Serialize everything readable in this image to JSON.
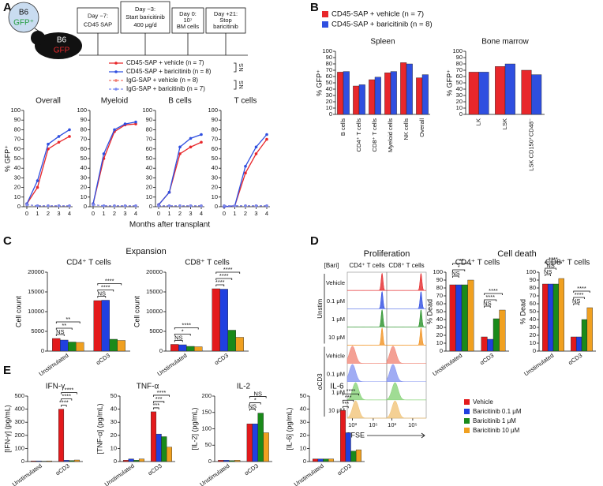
{
  "panel_labels": [
    "A",
    "B",
    "C",
    "D",
    "E"
  ],
  "timeline": {
    "donor": [
      "B6",
      "GFP⁺"
    ],
    "recipient": [
      "B6",
      "GFP"
    ],
    "steps": [
      [
        "Day −7:",
        "CD45 SAP"
      ],
      [
        "Day −3:",
        "Start baricitinib",
        "400 μg/d"
      ],
      [
        "Day 0:",
        "10⁷",
        "BM cells"
      ],
      [
        "Day +21:",
        "Stop",
        "baricitinib"
      ]
    ]
  },
  "shared_xlabel": "Months after transplant",
  "section_titles": [
    "Expansion",
    "Cell death"
  ],
  "chart_data": [
    {
      "type": "line",
      "title": "Overall",
      "ylabel": "% GFP⁺",
      "x": [
        0,
        1,
        2,
        3,
        4
      ],
      "xlim": [
        0,
        4
      ],
      "xticks": [
        0,
        1,
        2,
        3,
        4
      ],
      "ylim": [
        0,
        100
      ],
      "yticks": [
        0,
        10,
        20,
        30,
        40,
        50,
        60,
        70,
        80,
        90,
        100
      ],
      "series": [
        {
          "name": "CD45-SAP + vehicle (n = 7)",
          "color": "#e8272b",
          "line_style": "solid",
          "values": [
            3,
            20,
            60,
            67,
            73
          ]
        },
        {
          "name": "CD45-SAP + baricitinib (n = 8)",
          "color": "#2f4fe0",
          "line_style": "solid",
          "values": [
            3,
            27,
            65,
            73,
            80
          ]
        },
        {
          "name": "IgG-SAP + vehicle (n = 8)",
          "color": "#f07a70",
          "line_style": "dashed",
          "values": [
            2,
            1,
            1,
            1,
            1
          ]
        },
        {
          "name": "IgG-SAP + baricitinib (n = 7)",
          "color": "#7a8af0",
          "line_style": "dashed",
          "values": [
            2,
            1,
            1,
            1,
            1
          ]
        }
      ],
      "legend_notes": [
        "NS",
        "NS"
      ]
    },
    {
      "type": "line",
      "title": "Myeloid",
      "x": [
        0,
        1,
        2,
        3,
        4
      ],
      "xlim": [
        0,
        4
      ],
      "xticks": [
        0,
        1,
        2,
        3,
        4
      ],
      "ylim": [
        0,
        100
      ],
      "yticks": [
        0,
        10,
        20,
        30,
        40,
        50,
        60,
        70,
        80,
        90,
        100
      ],
      "series": [
        {
          "color": "#e8272b",
          "line_style": "solid",
          "values": [
            3,
            50,
            78,
            85,
            86
          ]
        },
        {
          "color": "#2f4fe0",
          "line_style": "solid",
          "values": [
            3,
            55,
            80,
            86,
            88
          ]
        },
        {
          "color": "#f07a70",
          "line_style": "dashed",
          "values": [
            2,
            1,
            1,
            1,
            1
          ]
        },
        {
          "color": "#7a8af0",
          "line_style": "dashed",
          "values": [
            2,
            1,
            1,
            1,
            1
          ]
        }
      ]
    },
    {
      "type": "line",
      "title": "B cells",
      "x": [
        0,
        1,
        2,
        3,
        4
      ],
      "xlim": [
        0,
        4
      ],
      "xticks": [
        0,
        1,
        2,
        3,
        4
      ],
      "ylim": [
        0,
        100
      ],
      "yticks": [
        0,
        10,
        20,
        30,
        40,
        50,
        60,
        70,
        80,
        90,
        100
      ],
      "series": [
        {
          "color": "#e8272b",
          "line_style": "solid",
          "values": [
            2,
            15,
            55,
            62,
            67
          ]
        },
        {
          "color": "#2f4fe0",
          "line_style": "solid",
          "values": [
            2,
            15,
            62,
            71,
            75
          ]
        },
        {
          "color": "#f07a70",
          "line_style": "dashed",
          "values": [
            1,
            1,
            1,
            1,
            1
          ]
        },
        {
          "color": "#7a8af0",
          "line_style": "dashed",
          "values": [
            1,
            1,
            1,
            1,
            1
          ]
        }
      ]
    },
    {
      "type": "line",
      "title": "T cells",
      "x": [
        0,
        1,
        2,
        3,
        4
      ],
      "xlim": [
        0,
        4
      ],
      "xticks": [
        0,
        1,
        2,
        3,
        4
      ],
      "ylim": [
        0,
        100
      ],
      "yticks": [
        0,
        10,
        20,
        30,
        40,
        50,
        60,
        70,
        80,
        90,
        100
      ],
      "series": [
        {
          "color": "#e8272b",
          "line_style": "solid",
          "values": [
            0,
            1,
            35,
            55,
            70
          ]
        },
        {
          "color": "#2f4fe0",
          "line_style": "solid",
          "values": [
            0,
            1,
            42,
            62,
            75
          ]
        },
        {
          "color": "#f07a70",
          "line_style": "dashed",
          "values": [
            1,
            1,
            1,
            1,
            1
          ]
        },
        {
          "color": "#7a8af0",
          "line_style": "dashed",
          "values": [
            1,
            1,
            1,
            1,
            1
          ]
        }
      ]
    },
    {
      "type": "bar",
      "title": "Spleen",
      "ylabel": "% GFP⁺",
      "categories": [
        "B cells",
        "CD4⁺ T cells",
        "CD8⁺ T cells",
        "Myeloid cells",
        "NK cells",
        "Overall"
      ],
      "ylim": [
        0,
        100
      ],
      "yticks": [
        0,
        10,
        20,
        30,
        40,
        50,
        60,
        70,
        80,
        90,
        100
      ],
      "series": [
        {
          "name": "CD45-SAP + vehicle (n = 7)",
          "color": "#e8272b",
          "values": [
            67,
            45,
            55,
            66,
            82,
            58
          ]
        },
        {
          "name": "CD45-SAP + baricitinib (n = 8)",
          "color": "#2f4fe0",
          "values": [
            68,
            47,
            59,
            68,
            80,
            63
          ]
        }
      ]
    },
    {
      "type": "bar",
      "title": "Bone marrow",
      "ylabel": "% GFP⁺",
      "categories": [
        "LK",
        "LSK",
        "LSK CD150⁺CD48⁻"
      ],
      "ylim": [
        0,
        100
      ],
      "yticks": [
        0,
        10,
        20,
        30,
        40,
        50,
        60,
        70,
        80,
        90,
        100
      ],
      "series": [
        {
          "color": "#e8272b",
          "values": [
            67,
            76,
            70
          ]
        },
        {
          "color": "#2f4fe0",
          "values": [
            67,
            80,
            63
          ]
        }
      ]
    },
    {
      "type": "bar",
      "title": "CD4⁺ T cells",
      "ylabel": "Cell count",
      "categories": [
        "Unstimulated",
        "αCD3"
      ],
      "ylim": [
        0,
        20000
      ],
      "yticks": [
        0,
        5000,
        10000,
        15000,
        20000
      ],
      "series": [
        {
          "color": "#e31a1c",
          "values": [
            3200,
            12800
          ]
        },
        {
          "color": "#2040e0",
          "values": [
            2800,
            12900
          ]
        },
        {
          "color": "#1a8a1a",
          "values": [
            2300,
            3000
          ]
        },
        {
          "color": "#f0a020",
          "values": [
            2200,
            2700
          ]
        }
      ],
      "annotations": [
        [
          "**",
          "**",
          "NS"
        ],
        [
          "****",
          "****",
          "NS"
        ]
      ]
    },
    {
      "type": "bar",
      "title": "CD8⁺ T cells",
      "ylabel": "Cell count",
      "categories": [
        "Unstimulated",
        "αCD3"
      ],
      "ylim": [
        0,
        20000
      ],
      "yticks": [
        0,
        5000,
        10000,
        15000,
        20000
      ],
      "series": [
        {
          "color": "#e31a1c",
          "values": [
            1700,
            15800
          ]
        },
        {
          "color": "#2040e0",
          "values": [
            1600,
            15700
          ]
        },
        {
          "color": "#1a8a1a",
          "values": [
            1200,
            5300
          ]
        },
        {
          "color": "#f0a020",
          "values": [
            1100,
            3500
          ]
        }
      ],
      "annotations": [
        [
          "****",
          "*",
          "NS"
        ],
        [
          "****",
          "****",
          "****"
        ]
      ]
    },
    {
      "type": "ridgeline",
      "title": "Proliferation",
      "group_header": "[Bari]",
      "groups": [
        "Unstim",
        "αCD3"
      ],
      "rows": [
        "Vehicle",
        "0.1 μM",
        "1 μM",
        "10 μM",
        "Vehicle",
        "0.1 μM",
        "1 μM",
        "10 μM"
      ],
      "colors": [
        "#e31a1c",
        "#2040e0",
        "#1a8a1a",
        "#f08a10",
        "#f08070",
        "#8090f0",
        "#80d070",
        "#f0c070"
      ],
      "xlim": [
        2.5,
        6.3
      ],
      "xticks": [
        {
          "value": 3,
          "label": "10³"
        },
        {
          "value": 5,
          "label": "10⁵"
        }
      ],
      "xlabel": "CFSE",
      "series": [
        {
          "name": "CD4⁺ T cells",
          "values": [
            5.85,
            5.85,
            5.85,
            5.85,
            3.0,
            3.0,
            3.3,
            3.3
          ]
        },
        {
          "name": "CD8⁺ T cells",
          "values": [
            5.8,
            5.8,
            5.8,
            5.8,
            3.1,
            3.1,
            3.3,
            3.3
          ]
        }
      ]
    },
    {
      "type": "bar",
      "title": "CD4⁺ T cells",
      "ylabel": "% Dead",
      "categories": [
        "Unstimulated",
        "αCD3"
      ],
      "ylim": [
        0,
        100
      ],
      "yticks": [
        0,
        10,
        20,
        30,
        40,
        50,
        60,
        70,
        80,
        90,
        100
      ],
      "series": [
        {
          "color": "#e31a1c",
          "values": [
            84,
            18
          ]
        },
        {
          "color": "#2040e0",
          "values": [
            84,
            15
          ]
        },
        {
          "color": "#1a8a1a",
          "values": [
            84,
            41
          ]
        },
        {
          "color": "#f0a020",
          "values": [
            90,
            52
          ]
        }
      ],
      "annotations": [
        [
          "**",
          "*",
          "NS"
        ],
        [
          "****",
          "****",
          "NS"
        ]
      ]
    },
    {
      "type": "bar",
      "title": "CD8⁺ T cells",
      "ylabel": "% Dead",
      "categories": [
        "Unstimulated",
        "αCD3"
      ],
      "ylim": [
        0,
        100
      ],
      "yticks": [
        0,
        10,
        20,
        30,
        40,
        50,
        60,
        70,
        80,
        90,
        100
      ],
      "series": [
        {
          "color": "#e31a1c",
          "values": [
            85,
            18
          ]
        },
        {
          "color": "#2040e0",
          "values": [
            85,
            18
          ]
        },
        {
          "color": "#1a8a1a",
          "values": [
            85,
            40
          ]
        },
        {
          "color": "#f0a020",
          "values": [
            92,
            55
          ]
        }
      ],
      "annotations": [
        [
          "****",
          "NS",
          "NS"
        ],
        [
          "****",
          "****",
          "NS"
        ]
      ]
    },
    {
      "type": "bar",
      "title": "IFN-γ",
      "ylabel": "[IFN-γ] (pg/mL)",
      "categories": [
        "Unstimulated",
        "αCD3"
      ],
      "ylim": [
        0,
        500
      ],
      "yticks": [
        0,
        100,
        200,
        300,
        400,
        500
      ],
      "series": [
        {
          "color": "#e31a1c",
          "values": [
            5,
            400
          ]
        },
        {
          "color": "#2040e0",
          "values": [
            5,
            10
          ]
        },
        {
          "color": "#1a8a1a",
          "values": [
            3,
            8
          ]
        },
        {
          "color": "#f0a020",
          "values": [
            5,
            12
          ]
        }
      ],
      "annotations": [
        [],
        [
          "****",
          "****",
          "****"
        ]
      ]
    },
    {
      "type": "bar",
      "title": "TNF-α",
      "ylabel": "[TNF-α] (pg/mL)",
      "categories": [
        "Unstimulated",
        "αCD3"
      ],
      "ylim": [
        0,
        50
      ],
      "yticks": [
        0,
        10,
        20,
        30,
        40,
        50
      ],
      "series": [
        {
          "color": "#e31a1c",
          "values": [
            1,
            38
          ]
        },
        {
          "color": "#2040e0",
          "values": [
            2,
            21
          ]
        },
        {
          "color": "#1a8a1a",
          "values": [
            1,
            19
          ]
        },
        {
          "color": "#f0a020",
          "values": [
            2,
            11
          ]
        }
      ],
      "annotations": [
        [],
        [
          "****",
          "***",
          "***"
        ]
      ]
    },
    {
      "type": "bar",
      "title": "IL-2",
      "ylabel": "[IL-2] (pg/mL)",
      "categories": [
        "Unstimulated",
        "αCD3"
      ],
      "ylim": [
        0,
        200
      ],
      "yticks": [
        0,
        50,
        100,
        150,
        200
      ],
      "series": [
        {
          "color": "#e31a1c",
          "values": [
            4,
            115
          ]
        },
        {
          "color": "#2040e0",
          "values": [
            4,
            115
          ]
        },
        {
          "color": "#1a8a1a",
          "values": [
            3,
            148
          ]
        },
        {
          "color": "#f0a020",
          "values": [
            4,
            88
          ]
        }
      ],
      "annotations": [
        [],
        [
          "NS",
          "*",
          "NS"
        ]
      ]
    },
    {
      "type": "bar",
      "title": "IL-6",
      "ylabel": "[IL-6] (pg/mL)",
      "categories": [
        "Unstimulated",
        "αCD3"
      ],
      "ylim": [
        0,
        50
      ],
      "yticks": [
        0,
        10,
        20,
        30,
        40,
        50
      ],
      "series": [
        {
          "name": "Vehicle",
          "color": "#e31a1c",
          "values": [
            2,
            39
          ]
        },
        {
          "name": "Baricitinib 0.1 μM",
          "color": "#2040e0",
          "values": [
            2,
            22
          ]
        },
        {
          "name": "Baricitinib 1 μM",
          "color": "#1a8a1a",
          "values": [
            2,
            8
          ]
        },
        {
          "name": "Baricitinib 10 μM",
          "color": "#f0a020",
          "values": [
            2,
            9
          ]
        }
      ],
      "annotations": [
        [],
        [
          "****",
          "***",
          "***"
        ]
      ]
    }
  ]
}
